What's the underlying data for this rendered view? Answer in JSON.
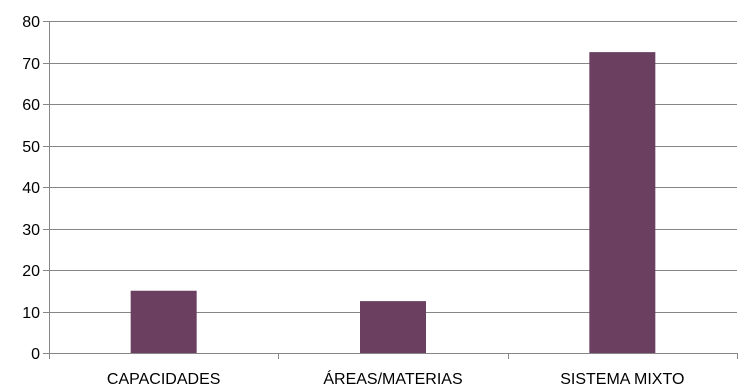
{
  "chart_data": {
    "type": "bar",
    "title": "",
    "xlabel": "",
    "ylabel": "",
    "categories": [
      "CAPACIDADES",
      "ÁREAS/MATERIAS",
      "SISTEMA MIXTO"
    ],
    "values": [
      15,
      12.5,
      72.5
    ],
    "ylim": [
      0,
      80
    ],
    "yticks": [
      0,
      10,
      20,
      30,
      40,
      50,
      60,
      70,
      80
    ],
    "grid": true,
    "legend": "none",
    "bar_color": "#6b3f5f",
    "grid_color": "#868686",
    "axis_color": "#868686"
  }
}
